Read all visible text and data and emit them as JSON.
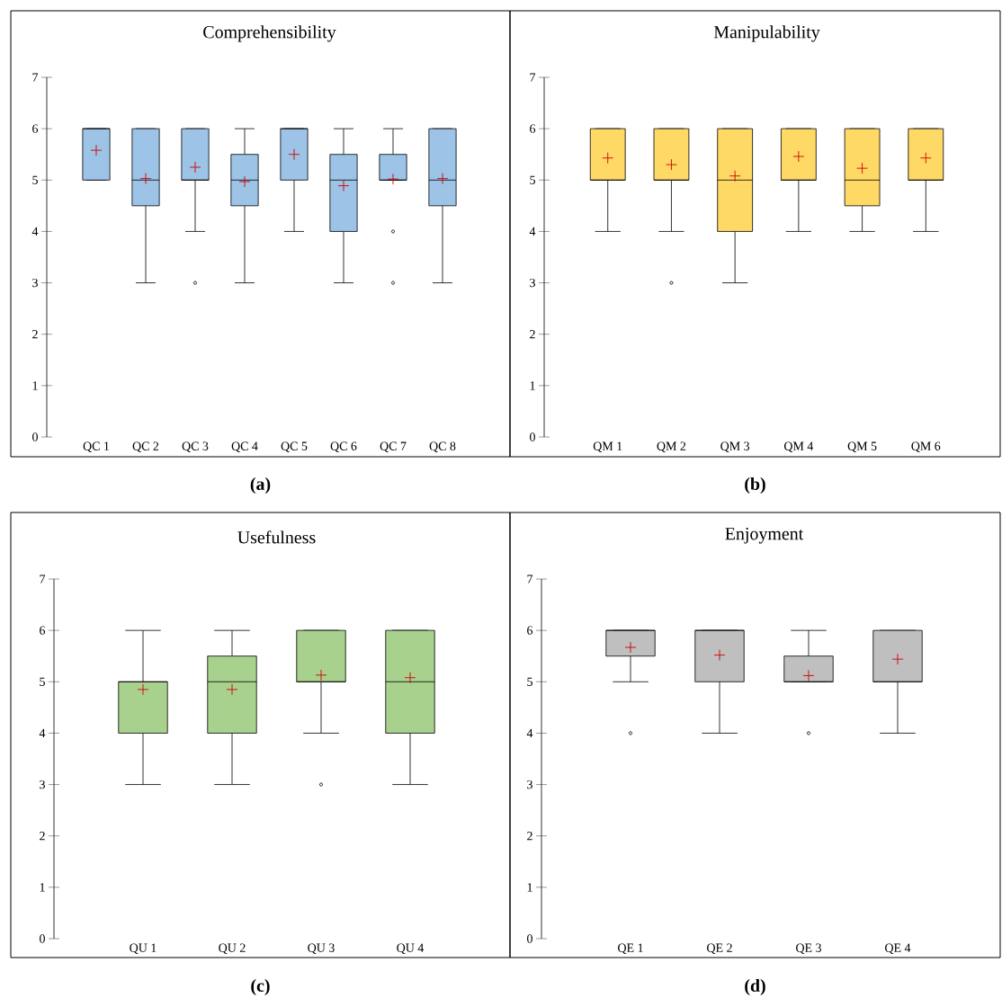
{
  "chart_data": [
    {
      "type": "box",
      "title": "Comprehensibility",
      "categories": [
        "QC 1",
        "QC 2",
        "QC 3",
        "QC 4",
        "QC 5",
        "QC 6",
        "QC 7",
        "QC 8"
      ],
      "color": "#9dc3e6",
      "ylim": [
        0,
        7
      ],
      "yticks": [
        0,
        1,
        2,
        3,
        4,
        5,
        6,
        7
      ],
      "annotations": [
        "**(a)**"
      ],
      "boxes": [
        {
          "low": 5,
          "q1": 5,
          "median": 6,
          "q3": 6,
          "high": 6,
          "mean": 5.58
        },
        {
          "low": 3,
          "q1": 4.5,
          "median": 5,
          "q3": 6,
          "high": 6,
          "mean": 5.03
        },
        {
          "low": 4,
          "q1": 5,
          "median": 5,
          "q3": 6,
          "high": 6,
          "mean": 5.25,
          "outliers": [
            3
          ]
        },
        {
          "low": 3,
          "q1": 4.5,
          "median": 5,
          "q3": 5.5,
          "high": 6,
          "mean": 4.97
        },
        {
          "low": 4,
          "q1": 5,
          "median": 6,
          "q3": 6,
          "high": 6,
          "mean": 5.5
        },
        {
          "low": 3,
          "q1": 4,
          "median": 5,
          "q3": 5.5,
          "high": 6,
          "mean": 4.89
        },
        {
          "low": 5,
          "q1": 5,
          "median": 5,
          "q3": 5.5,
          "high": 6,
          "mean": 5.02,
          "outliers": [
            4,
            3
          ]
        },
        {
          "low": 3,
          "q1": 4.5,
          "median": 5,
          "q3": 6,
          "high": 6,
          "mean": 5.03
        }
      ]
    },
    {
      "type": "box",
      "title": "Manipulability",
      "categories": [
        "QM 1",
        "QM 2",
        "QM 3",
        "QM 4",
        "QM 5",
        "QM 6"
      ],
      "color": "#ffd966",
      "ylim": [
        0,
        7
      ],
      "yticks": [
        0,
        1,
        2,
        3,
        4,
        5,
        6,
        7
      ],
      "annotations": [
        "**(b)**"
      ],
      "boxes": [
        {
          "low": 4,
          "q1": 5,
          "median": 5,
          "q3": 6,
          "high": 6,
          "mean": 5.43
        },
        {
          "low": 4,
          "q1": 5,
          "median": 5,
          "q3": 6,
          "high": 6,
          "mean": 5.3,
          "outliers": [
            3
          ]
        },
        {
          "low": 3,
          "q1": 4,
          "median": 5,
          "q3": 6,
          "high": 6,
          "mean": 5.08
        },
        {
          "low": 4,
          "q1": 5,
          "median": 5,
          "q3": 6,
          "high": 6,
          "mean": 5.46
        },
        {
          "low": 4,
          "q1": 4.5,
          "median": 5,
          "q3": 6,
          "high": 6,
          "mean": 5.23
        },
        {
          "low": 4,
          "q1": 5,
          "median": 5,
          "q3": 6,
          "high": 6,
          "mean": 5.43
        }
      ]
    },
    {
      "type": "box",
      "title": "Usefulness",
      "categories": [
        "QU 1",
        "QU 2",
        "QU 3",
        "QU 4"
      ],
      "color": "#a9d18e",
      "ylim": [
        0,
        7
      ],
      "yticks": [
        0,
        1,
        2,
        3,
        4,
        5,
        6,
        7
      ],
      "annotations": [
        "**(c)**"
      ],
      "boxes": [
        {
          "low": 3,
          "q1": 4,
          "median": 5,
          "q3": 5,
          "high": 6,
          "mean": 4.85
        },
        {
          "low": 3,
          "q1": 4,
          "median": 5,
          "q3": 5.5,
          "high": 6,
          "mean": 4.85
        },
        {
          "low": 4,
          "q1": 5,
          "median": 5,
          "q3": 6,
          "high": 6,
          "mean": 5.13,
          "outliers": [
            3
          ]
        },
        {
          "low": 3,
          "q1": 4,
          "median": 5,
          "q3": 6,
          "high": 6,
          "mean": 5.08
        }
      ]
    },
    {
      "type": "box",
      "title": "Enjoyment",
      "categories": [
        "QE 1",
        "QE 2",
        "QE 3",
        "QE 4"
      ],
      "color": "#bfbfbf",
      "ylim": [
        0,
        7
      ],
      "yticks": [
        0,
        1,
        2,
        3,
        4,
        5,
        6,
        7
      ],
      "annotations": [
        "**(d)**"
      ],
      "boxes": [
        {
          "low": 5,
          "q1": 5.5,
          "median": 6,
          "q3": 6,
          "high": 6,
          "mean": 5.67,
          "outliers": [
            4
          ]
        },
        {
          "low": 4,
          "q1": 5,
          "median": 6,
          "q3": 6,
          "high": 6,
          "mean": 5.52
        },
        {
          "low": 5,
          "q1": 5,
          "median": 5,
          "q3": 5.5,
          "high": 6,
          "mean": 5.12,
          "outliers": [
            4
          ]
        },
        {
          "low": 4,
          "q1": 5,
          "median": 5,
          "q3": 6,
          "high": 6,
          "mean": 5.44
        }
      ]
    }
  ]
}
